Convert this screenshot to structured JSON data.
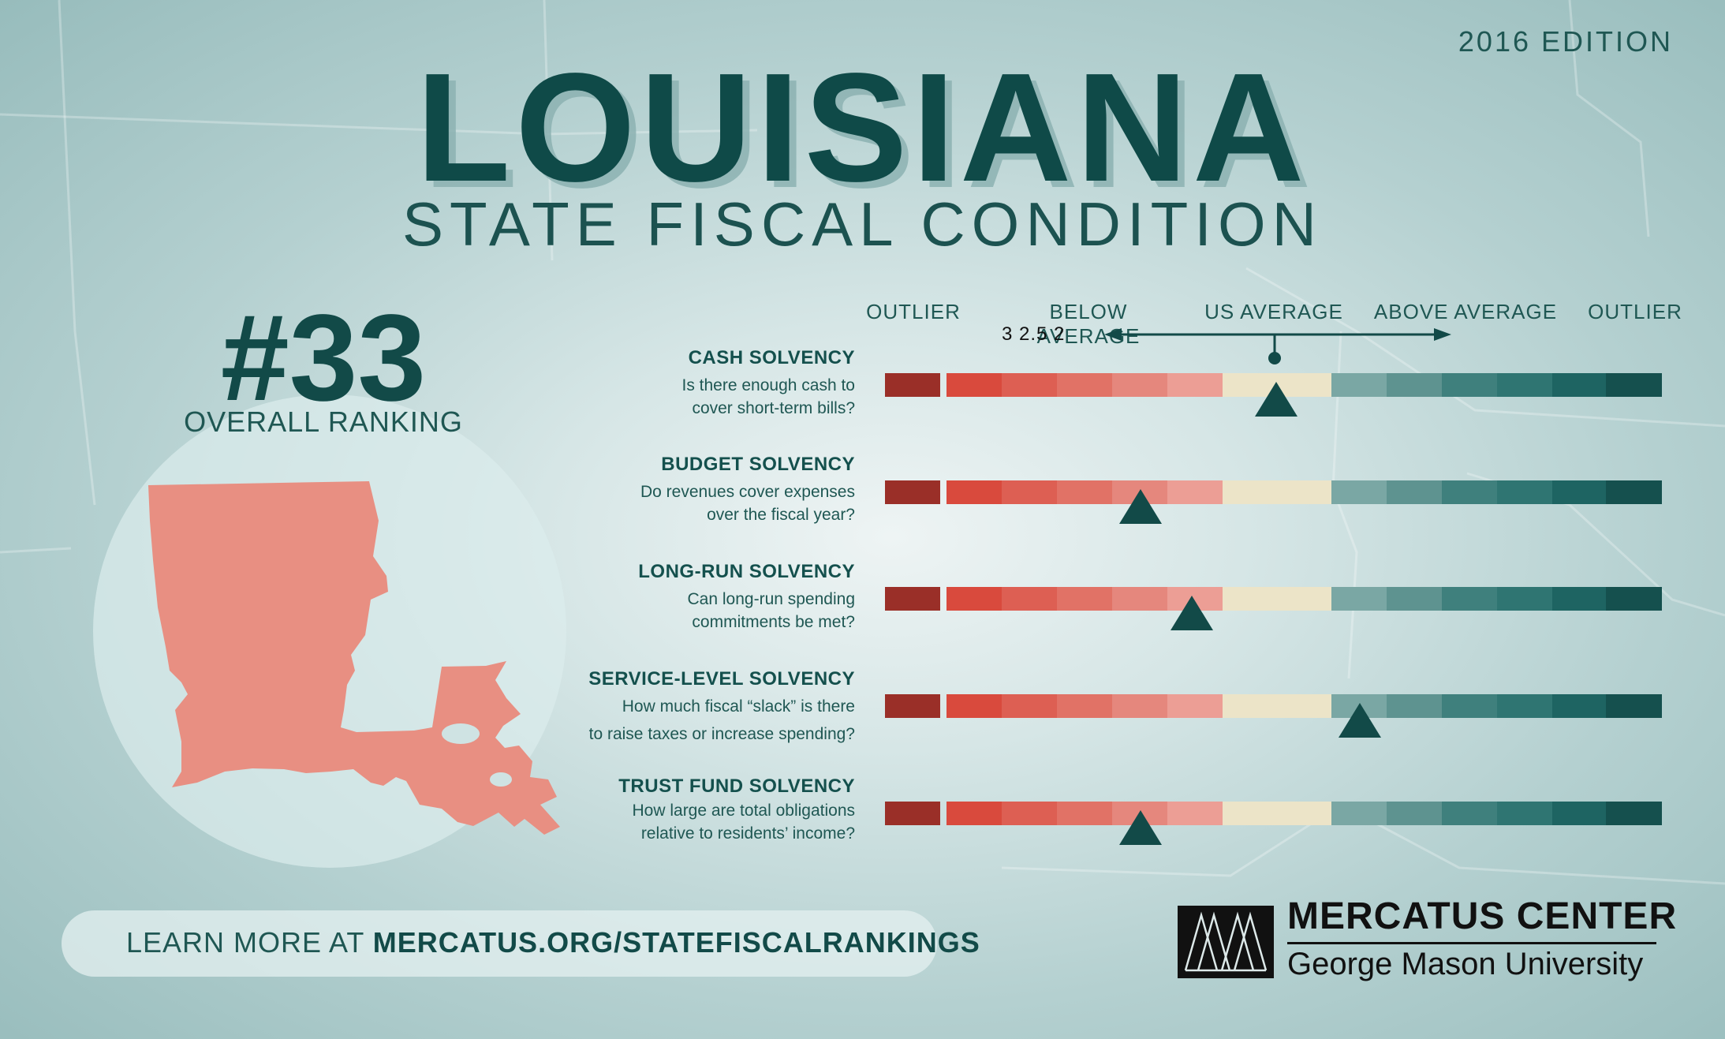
{
  "edition": "2016 EDITION",
  "title": "LOUISIANA",
  "subtitle": "STATE FISCAL CONDITION",
  "ranking": {
    "number": "#33",
    "label": "OVERALL RANKING"
  },
  "scale": {
    "labels": [
      "OUTLIER",
      "BELOW AVERAGE",
      "US AVERAGE",
      "ABOVE AVERAGE",
      "OUTLIER"
    ],
    "numbers": "3 2.5 2"
  },
  "segment_colors": [
    "#9a2f28",
    "#d94a3d",
    "#dd5f53",
    "#e17266",
    "#e5877d",
    "#ec9e95",
    "#ece4c8",
    "#ece4c8",
    "#7aa7a4",
    "#5e9390",
    "#3f807d",
    "#2f7572",
    "#1e6462",
    "#15504e"
  ],
  "metrics": [
    {
      "name": "CASH SOLVENCY",
      "question": [
        "Is there enough cash to",
        "cover short-term bills?"
      ],
      "level": 0.504
    },
    {
      "name": "BUDGET SOLVENCY",
      "question": [
        "Do revenues cover expenses",
        "over the fiscal year?"
      ],
      "level": 0.329
    },
    {
      "name": "LONG-RUN SOLVENCY",
      "question": [
        "Can long-run spending",
        "commitments be met?"
      ],
      "level": 0.395
    },
    {
      "name": "SERVICE-LEVEL SOLVENCY",
      "question": [
        "How much fiscal “slack” is there",
        "to raise taxes or increase spending?"
      ],
      "level": 0.611
    },
    {
      "name": "TRUST FUND SOLVENCY",
      "question": [
        "How large are total obligations",
        "relative to residents’ income?"
      ],
      "level": 0.329
    }
  ],
  "cta": {
    "prefix": "LEARN MORE AT ",
    "url": "MERCATUS.ORG/STATEFISCALRANKINGS"
  },
  "org": {
    "name": "MERCATUS CENTER",
    "university": "George Mason University"
  },
  "colors": {
    "dark_teal": "#124a48",
    "state": "#e88f82"
  }
}
